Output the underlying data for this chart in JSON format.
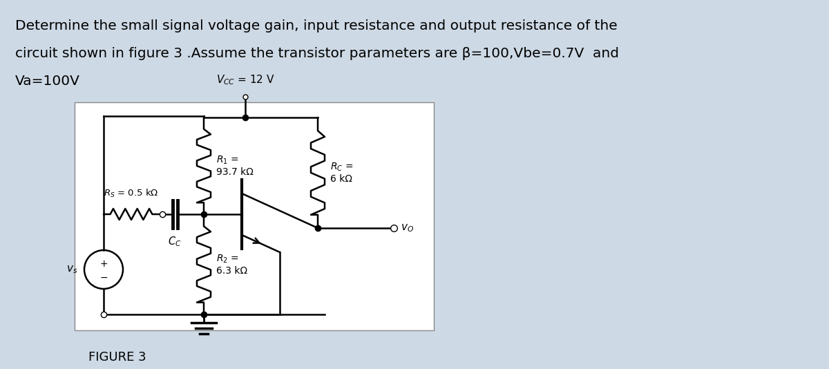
{
  "bg_color": "#cdd9e5",
  "circuit_bg": "#ffffff",
  "title_lines": [
    "Determine the small signal voltage gain, input resistance and output resistance of the",
    "circuit shown in figure 3 .Assume the transistor parameters are β=100,Vbe=0.7V  and",
    "Va=100V"
  ],
  "figure_label": "FIGURE 3",
  "vcc_label": "$V_{CC}$ = 12 V",
  "R1_label": "$R_1$ =\n93.7 kΩ",
  "R2_label": "$R_2$ =\n6.3 kΩ",
  "RC_label": "$R_C$ =\n6 kΩ",
  "Rs_label": "$R_S$ = 0.5 kΩ",
  "Cc_label": "$C_C$",
  "vs_label": "$v_s$",
  "vo_label": "$v_O$",
  "title_fontsize": 14.5,
  "label_fontsize": 10.5
}
